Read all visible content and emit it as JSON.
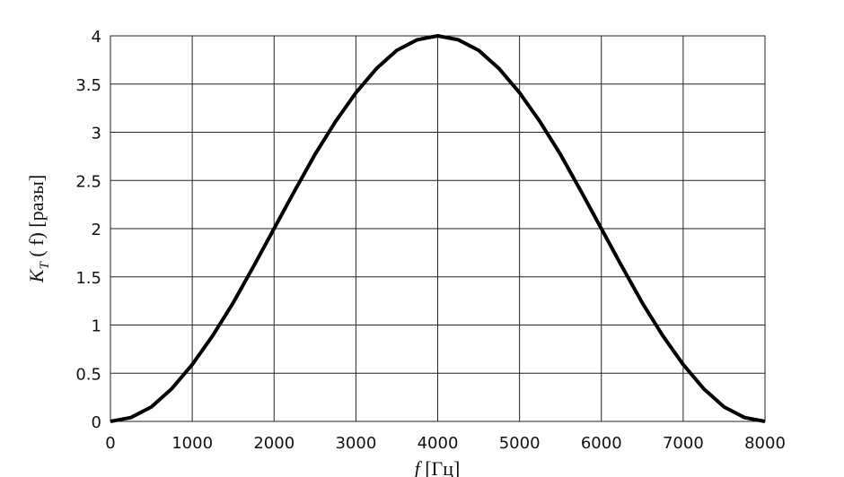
{
  "chart_data": {
    "type": "line",
    "x_label": {
      "main": "f",
      "rest": " [Гц]"
    },
    "y_label": {
      "main": "K",
      "sub": "T",
      "rest": " ( f) [разы]"
    },
    "x": [
      0,
      250,
      500,
      750,
      1000,
      1250,
      1500,
      1750,
      2000,
      2250,
      2500,
      2750,
      3000,
      3250,
      3500,
      3750,
      4000,
      4250,
      4500,
      4750,
      5000,
      5250,
      5500,
      5750,
      6000,
      6250,
      6500,
      6750,
      7000,
      7250,
      7500,
      7750,
      8000
    ],
    "series": [
      {
        "color": "#000000",
        "values": [
          0,
          0.04,
          0.15,
          0.34,
          0.59,
          0.89,
          1.23,
          1.61,
          2,
          2.39,
          2.77,
          3.11,
          3.41,
          3.66,
          3.85,
          3.96,
          4,
          3.96,
          3.85,
          3.66,
          3.41,
          3.11,
          2.77,
          2.39,
          2,
          1.61,
          1.23,
          0.89,
          0.59,
          0.34,
          0.15,
          0.04,
          0
        ]
      }
    ],
    "xlim": [
      0,
      8000
    ],
    "xticks": [
      0,
      1000,
      2000,
      3000,
      4000,
      5000,
      6000,
      7000,
      8000
    ],
    "ylim": [
      0,
      4
    ],
    "yticks": [
      0,
      0.5,
      1,
      1.5,
      2,
      2.5,
      3,
      3.5,
      4
    ],
    "grid": true
  }
}
